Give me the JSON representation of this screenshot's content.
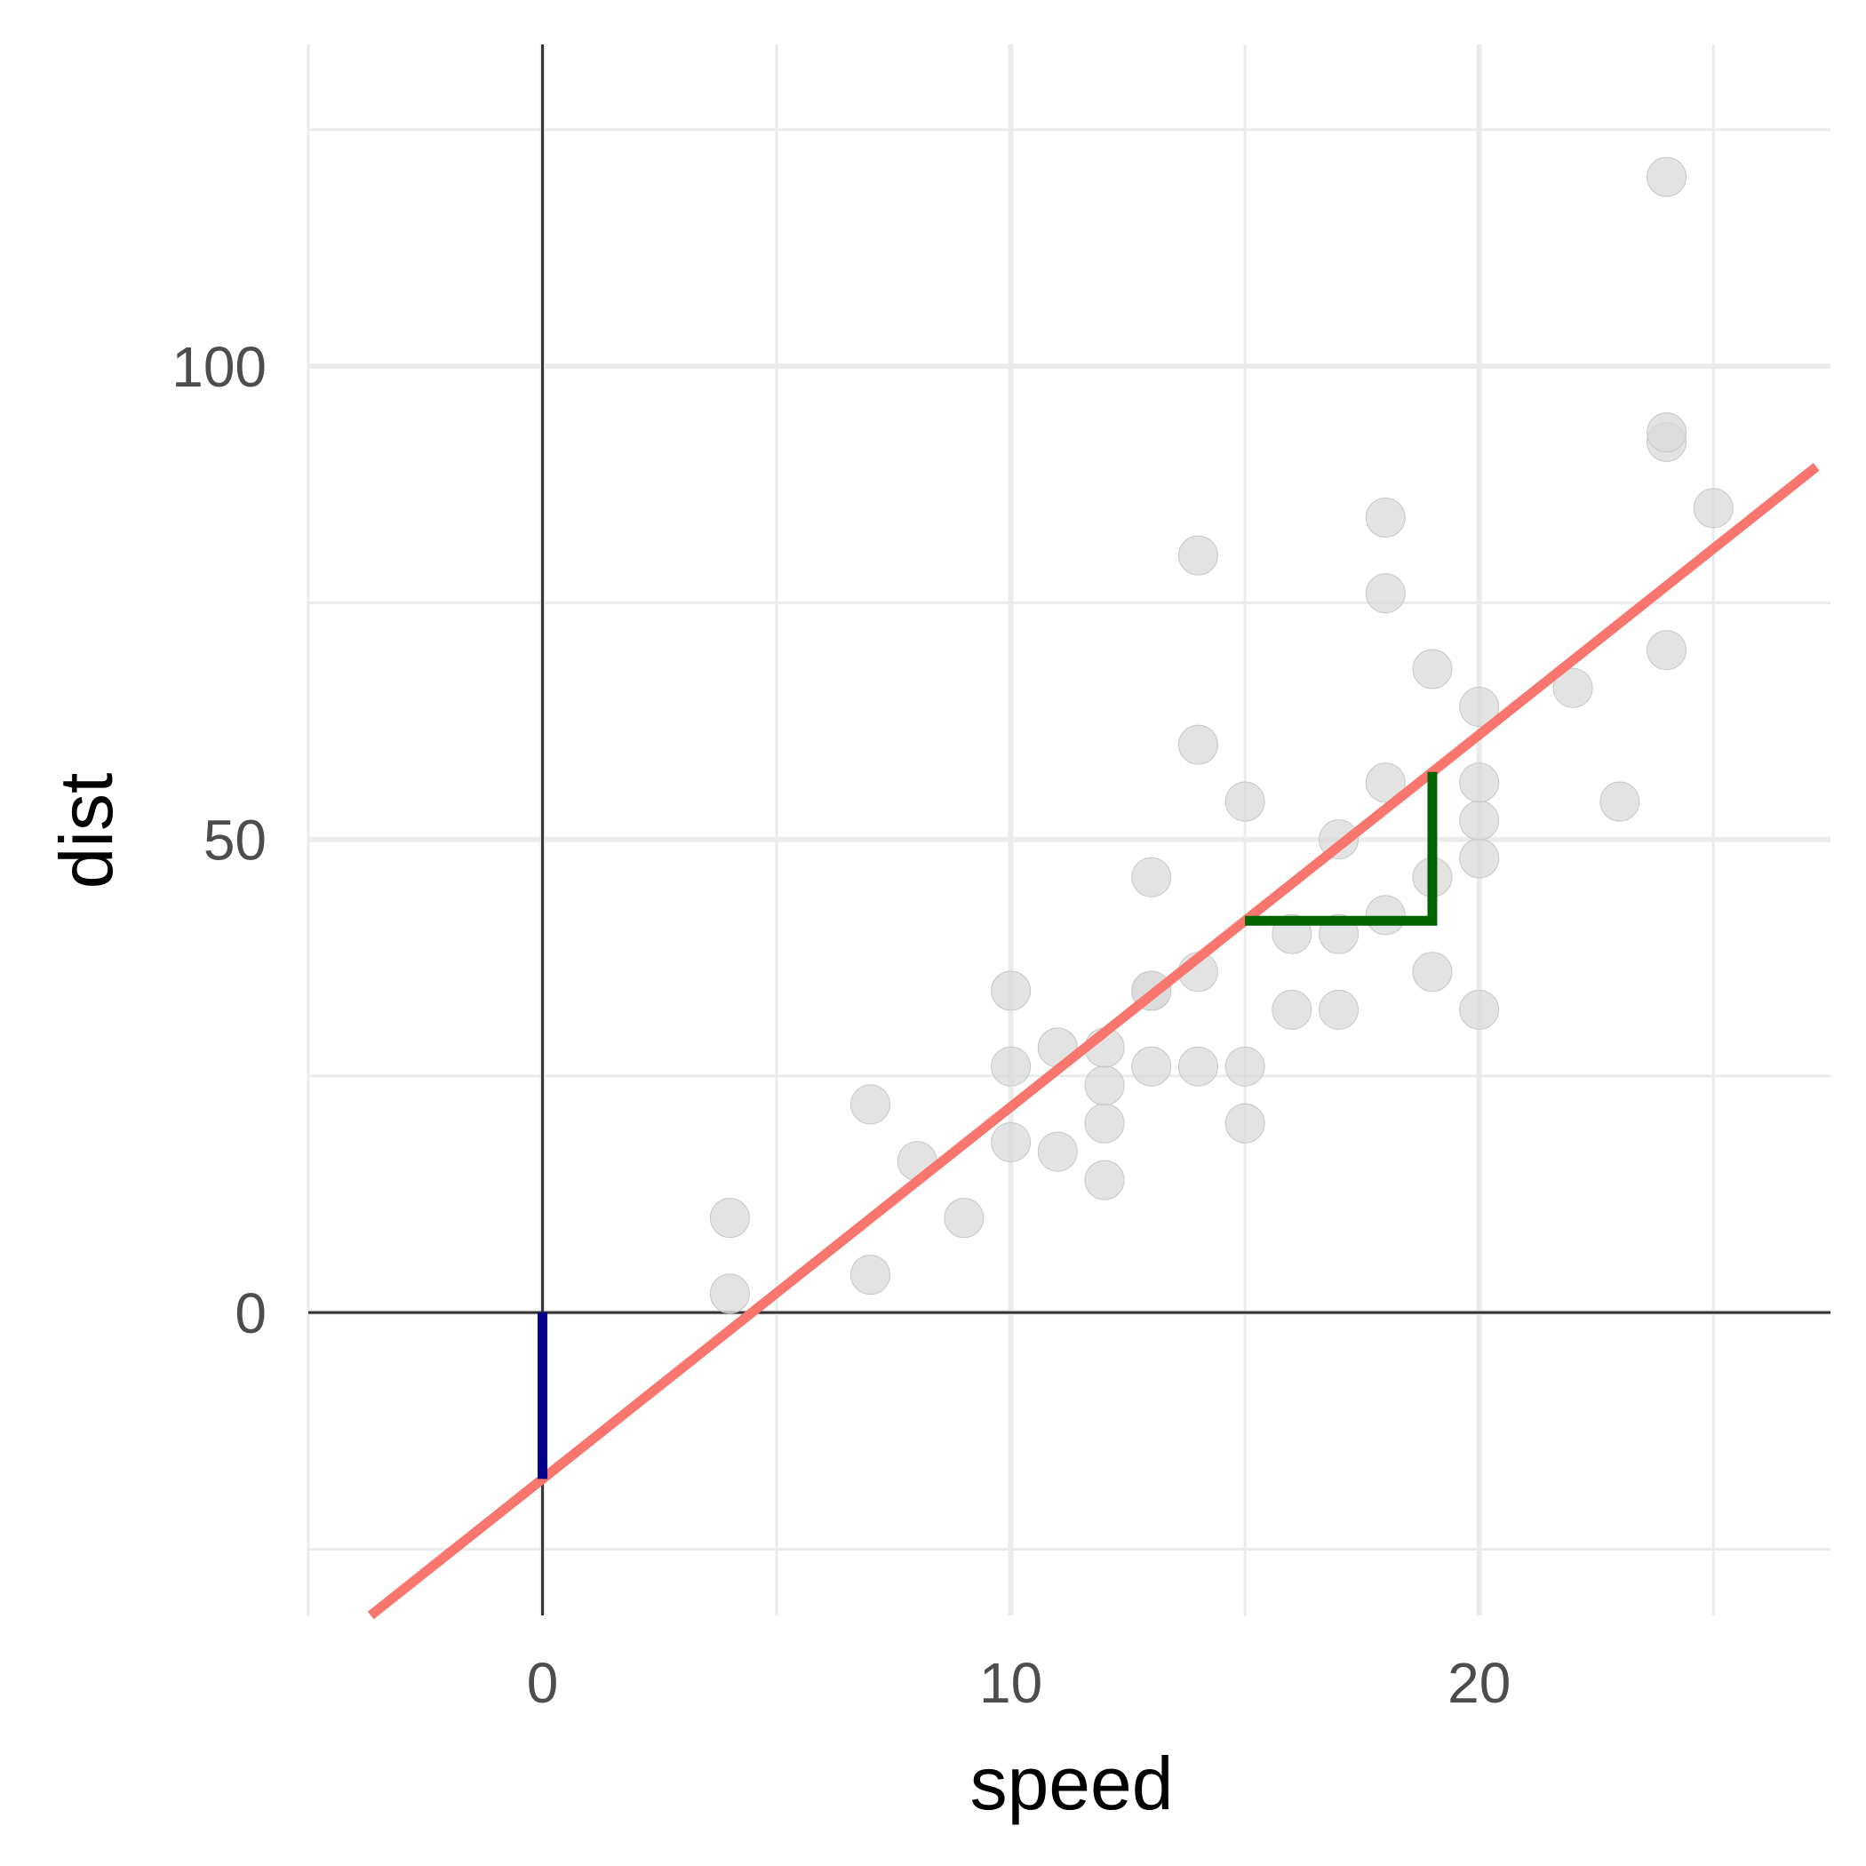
{
  "chart_data": {
    "type": "scatter",
    "xlabel": "speed",
    "ylabel": "dist",
    "xlim": [
      -5,
      27.5
    ],
    "ylim": [
      -32,
      134
    ],
    "x_ticks": [
      0,
      10,
      20
    ],
    "y_ticks": [
      0,
      50,
      100
    ],
    "x_minor": [
      -5,
      5,
      15,
      25
    ],
    "y_minor": [
      -25,
      25,
      75,
      125
    ],
    "grid": true,
    "reference_lines": {
      "x": 0,
      "y": 0
    },
    "points": [
      [
        4,
        2
      ],
      [
        4,
        10
      ],
      [
        7,
        4
      ],
      [
        7,
        22
      ],
      [
        8,
        16
      ],
      [
        9,
        10
      ],
      [
        10,
        18
      ],
      [
        10,
        26
      ],
      [
        10,
        34
      ],
      [
        11,
        17
      ],
      [
        11,
        28
      ],
      [
        12,
        14
      ],
      [
        12,
        20
      ],
      [
        12,
        24
      ],
      [
        12,
        28
      ],
      [
        13,
        26
      ],
      [
        13,
        34
      ],
      [
        13,
        34
      ],
      [
        13,
        46
      ],
      [
        14,
        26
      ],
      [
        14,
        36
      ],
      [
        14,
        60
      ],
      [
        14,
        80
      ],
      [
        15,
        20
      ],
      [
        15,
        26
      ],
      [
        15,
        54
      ],
      [
        16,
        32
      ],
      [
        16,
        40
      ],
      [
        17,
        32
      ],
      [
        17,
        40
      ],
      [
        17,
        50
      ],
      [
        18,
        42
      ],
      [
        18,
        56
      ],
      [
        18,
        76
      ],
      [
        18,
        84
      ],
      [
        19,
        36
      ],
      [
        19,
        46
      ],
      [
        19,
        68
      ],
      [
        20,
        32
      ],
      [
        20,
        48
      ],
      [
        20,
        52
      ],
      [
        20,
        56
      ],
      [
        20,
        64
      ],
      [
        22,
        66
      ],
      [
        23,
        54
      ],
      [
        24,
        70
      ],
      [
        24,
        92
      ],
      [
        24,
        93
      ],
      [
        24,
        120
      ],
      [
        25,
        85
      ]
    ],
    "regression": {
      "intercept": -17.579,
      "slope": 3.932,
      "color": "#f8766d"
    },
    "intercept_segment": {
      "x": 0,
      "y_from": 0,
      "y_to": -17.579,
      "color": "#00008b"
    },
    "slope_triangle": {
      "x_from": 15,
      "x_to": 19,
      "color": "#006400"
    },
    "colors": {
      "point": "#d9d9d9",
      "reference": "#333333",
      "grid": "#ebebeb"
    }
  }
}
